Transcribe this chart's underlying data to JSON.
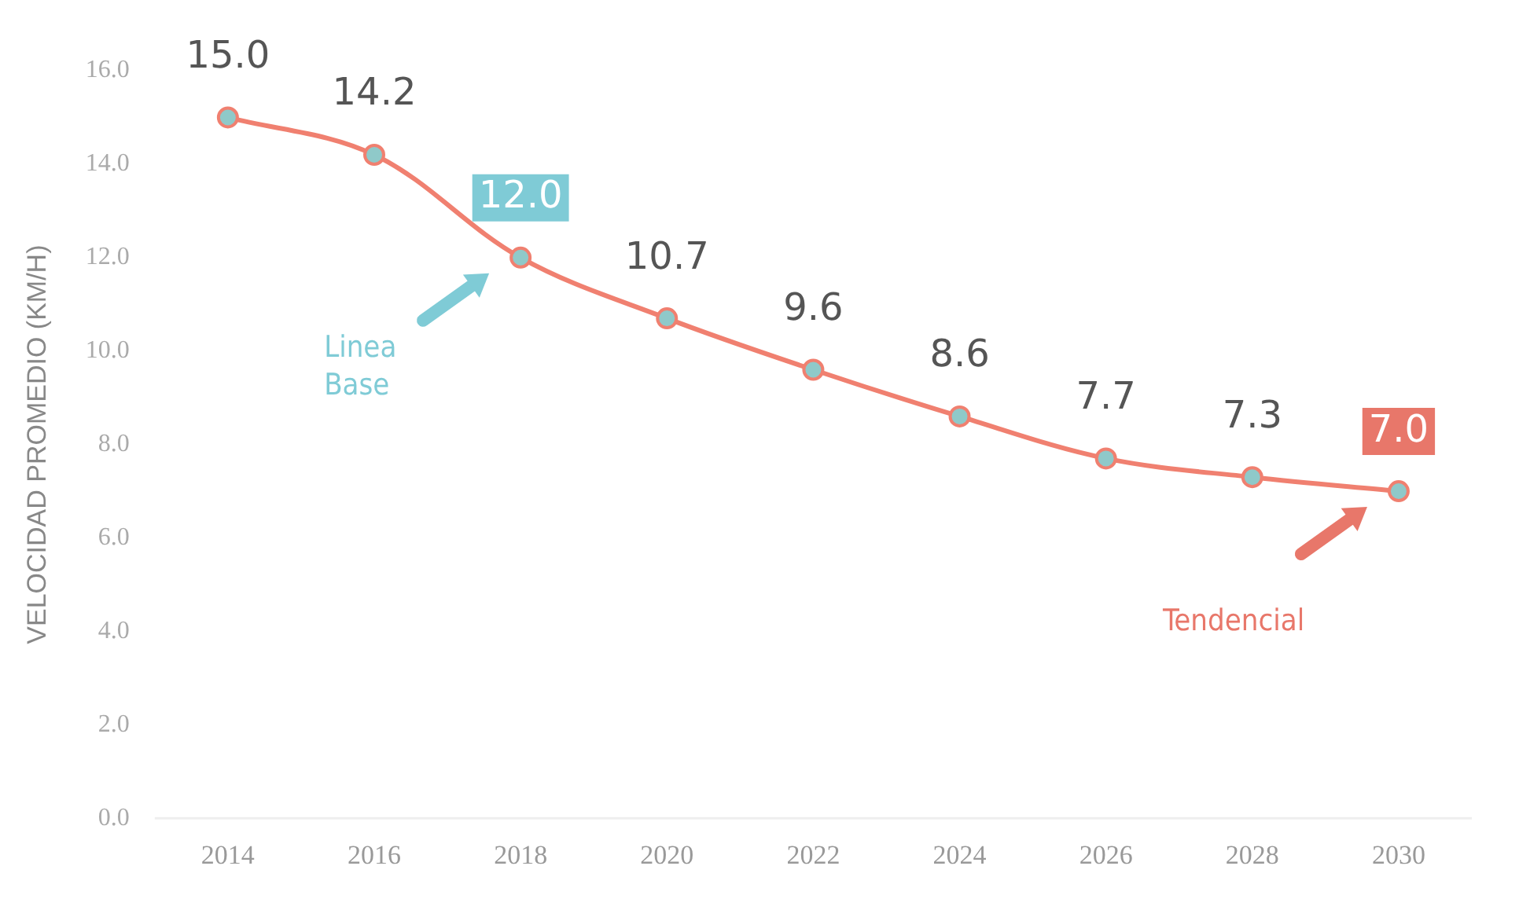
{
  "chart_data": {
    "type": "line",
    "ylabel": "VELOCIDAD PROMEDIO (KM/H)",
    "categories": [
      "2014",
      "2016",
      "2018",
      "2020",
      "2022",
      "2024",
      "2026",
      "2028",
      "2030"
    ],
    "series": [
      {
        "color": "#f08070",
        "values": [
          15.0,
          14.2,
          12.0,
          10.7,
          9.6,
          8.6,
          7.7,
          7.3,
          7.0
        ]
      }
    ],
    "ylim": [
      0,
      16
    ],
    "yticks": [
      {
        "value": 0,
        "label": "0.0"
      },
      {
        "value": 2,
        "label": "2.0"
      },
      {
        "value": 4,
        "label": "4.0"
      },
      {
        "value": 6,
        "label": "6.0"
      },
      {
        "value": 8,
        "label": "8.0"
      },
      {
        "value": 10,
        "label": "10.0"
      },
      {
        "value": 12,
        "label": "12.0"
      },
      {
        "value": 14,
        "label": "14.0"
      },
      {
        "value": 16,
        "label": "16.0"
      }
    ],
    "annotations": [
      "Linea Base",
      "Tendencial"
    ],
    "value_labels": [
      "15.0",
      "14.2",
      "12.0",
      "10.7",
      "9.6",
      "8.6",
      "7.7",
      "7.3",
      "7.0"
    ],
    "marker": "circle",
    "line_style": "solid",
    "grid": false,
    "legend": false
  }
}
